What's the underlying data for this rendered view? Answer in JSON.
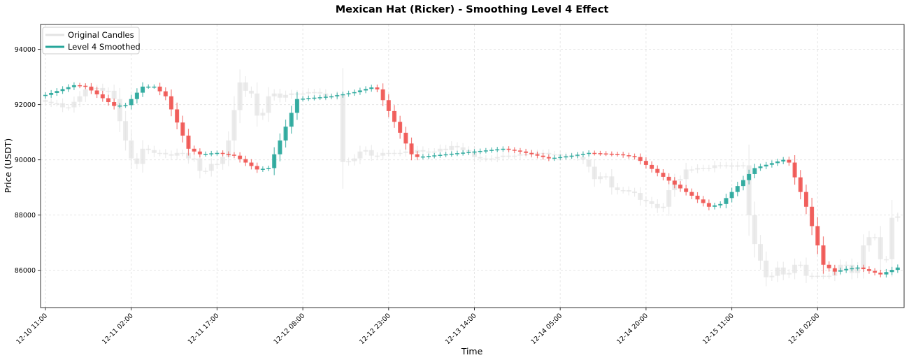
{
  "chart_data": {
    "type": "candlestick",
    "title": "Mexican Hat (Ricker) - Smoothing Level 4 Effect",
    "xlabel": "Time",
    "ylabel": "Price (USDT)",
    "ylim": [
      84650,
      94900
    ],
    "interval": "1h",
    "x_ticks": [
      {
        "index": 0,
        "label": "12-10 11:00"
      },
      {
        "index": 15,
        "label": "12-11 02:00"
      },
      {
        "index": 30,
        "label": "12-11 17:00"
      },
      {
        "index": 45,
        "label": "12-12 08:00"
      },
      {
        "index": 60,
        "label": "12-12 23:00"
      },
      {
        "index": 75,
        "label": "12-13 14:00"
      },
      {
        "index": 90,
        "label": "12-14 05:00"
      },
      {
        "index": 105,
        "label": "12-14 20:00"
      },
      {
        "index": 120,
        "label": "12-15 11:00"
      },
      {
        "index": 135,
        "label": "12-16 02:00"
      }
    ],
    "y_ticks": [
      86000,
      88000,
      90000,
      92000,
      94000
    ],
    "grid": true,
    "legend_position": "top-left",
    "colors": {
      "up": "#26a69a",
      "down": "#ef5350",
      "original": "#e3e3e3"
    },
    "series": [
      {
        "name": "Original Candles",
        "close": [
          92100,
          92050,
          92050,
          91900,
          91900,
          92100,
          92300,
          92550,
          92600,
          92600,
          92500,
          92500,
          92200,
          91400,
          90700,
          90050,
          89850,
          90400,
          90350,
          90250,
          90250,
          90200,
          90150,
          90250,
          90250,
          90050,
          90050,
          89600,
          89600,
          89850,
          89850,
          90100,
          90700,
          91800,
          92800,
          92500,
          92400,
          91600,
          91700,
          92300,
          92400,
          92250,
          92350,
          92400,
          92400,
          92400,
          92450,
          92450,
          92400,
          92300,
          92300,
          92350,
          89920,
          89950,
          90050,
          90300,
          90350,
          90150,
          90150,
          90250,
          90250,
          90250,
          90250,
          90300,
          90250,
          90350,
          90300,
          90300,
          90300,
          90400,
          90350,
          90500,
          90450,
          90350,
          90300,
          90100,
          90050,
          90050,
          90050,
          90100,
          90150,
          90150,
          90150,
          90200,
          90200,
          90250,
          90250,
          90250,
          90200,
          90200,
          90150,
          90150,
          90150,
          90100,
          90000,
          89750,
          89300,
          89400,
          89400,
          89000,
          88900,
          88900,
          88850,
          88800,
          88550,
          88500,
          88400,
          88250,
          88300,
          88900,
          89250,
          89300,
          89650,
          89650,
          89700,
          89700,
          89700,
          89800,
          89800,
          89800,
          89750,
          89800,
          89800,
          88000,
          86950,
          86350,
          85750,
          85800,
          86100,
          85850,
          85900,
          86200,
          86200,
          85800,
          85800,
          85800,
          85800,
          85800,
          86000,
          86200,
          86200,
          85900,
          86100,
          86900,
          87200,
          87200,
          86400,
          86400,
          87900,
          87950
        ]
      },
      {
        "name": "Level 4 Smoothed",
        "close": [
          92350,
          92420,
          92490,
          92560,
          92630,
          92700,
          92680,
          92650,
          92510,
          92370,
          92230,
          92090,
          91950,
          91965,
          91980,
          92200,
          92430,
          92650,
          92650,
          92650,
          92480,
          92300,
          91825,
          91350,
          90875,
          90400,
          90300,
          90200,
          90215,
          90235,
          90250,
          90215,
          90185,
          90150,
          90025,
          89900,
          89775,
          89650,
          89675,
          89700,
          90200,
          90700,
          91200,
          91700,
          92200,
          92215,
          92235,
          92250,
          92265,
          92285,
          92300,
          92340,
          92375,
          92410,
          92450,
          92510,
          92565,
          92620,
          92550,
          92160,
          91765,
          91375,
          90980,
          90590,
          90200,
          90100,
          90120,
          90140,
          90160,
          90180,
          90200,
          90220,
          90240,
          90260,
          90280,
          90300,
          90320,
          90340,
          90360,
          90380,
          90400,
          90365,
          90335,
          90300,
          90250,
          90200,
          90150,
          90100,
          90050,
          90075,
          90100,
          90125,
          90150,
          90185,
          90215,
          90250,
          90240,
          90230,
          90220,
          90210,
          90200,
          90165,
          90135,
          90100,
          89960,
          89815,
          89670,
          89530,
          89385,
          89245,
          89100,
          88965,
          88835,
          88700,
          88565,
          88435,
          88300,
          88350,
          88400,
          88615,
          88835,
          89050,
          89265,
          89485,
          89700,
          89760,
          89820,
          89880,
          89940,
          90000,
          89900,
          89365,
          88835,
          88300,
          87600,
          86900,
          86200,
          86075,
          85950,
          86000,
          86050,
          86075,
          86100,
          86040,
          85975,
          85915,
          85850,
          85935,
          86015,
          86100
        ]
      }
    ]
  }
}
